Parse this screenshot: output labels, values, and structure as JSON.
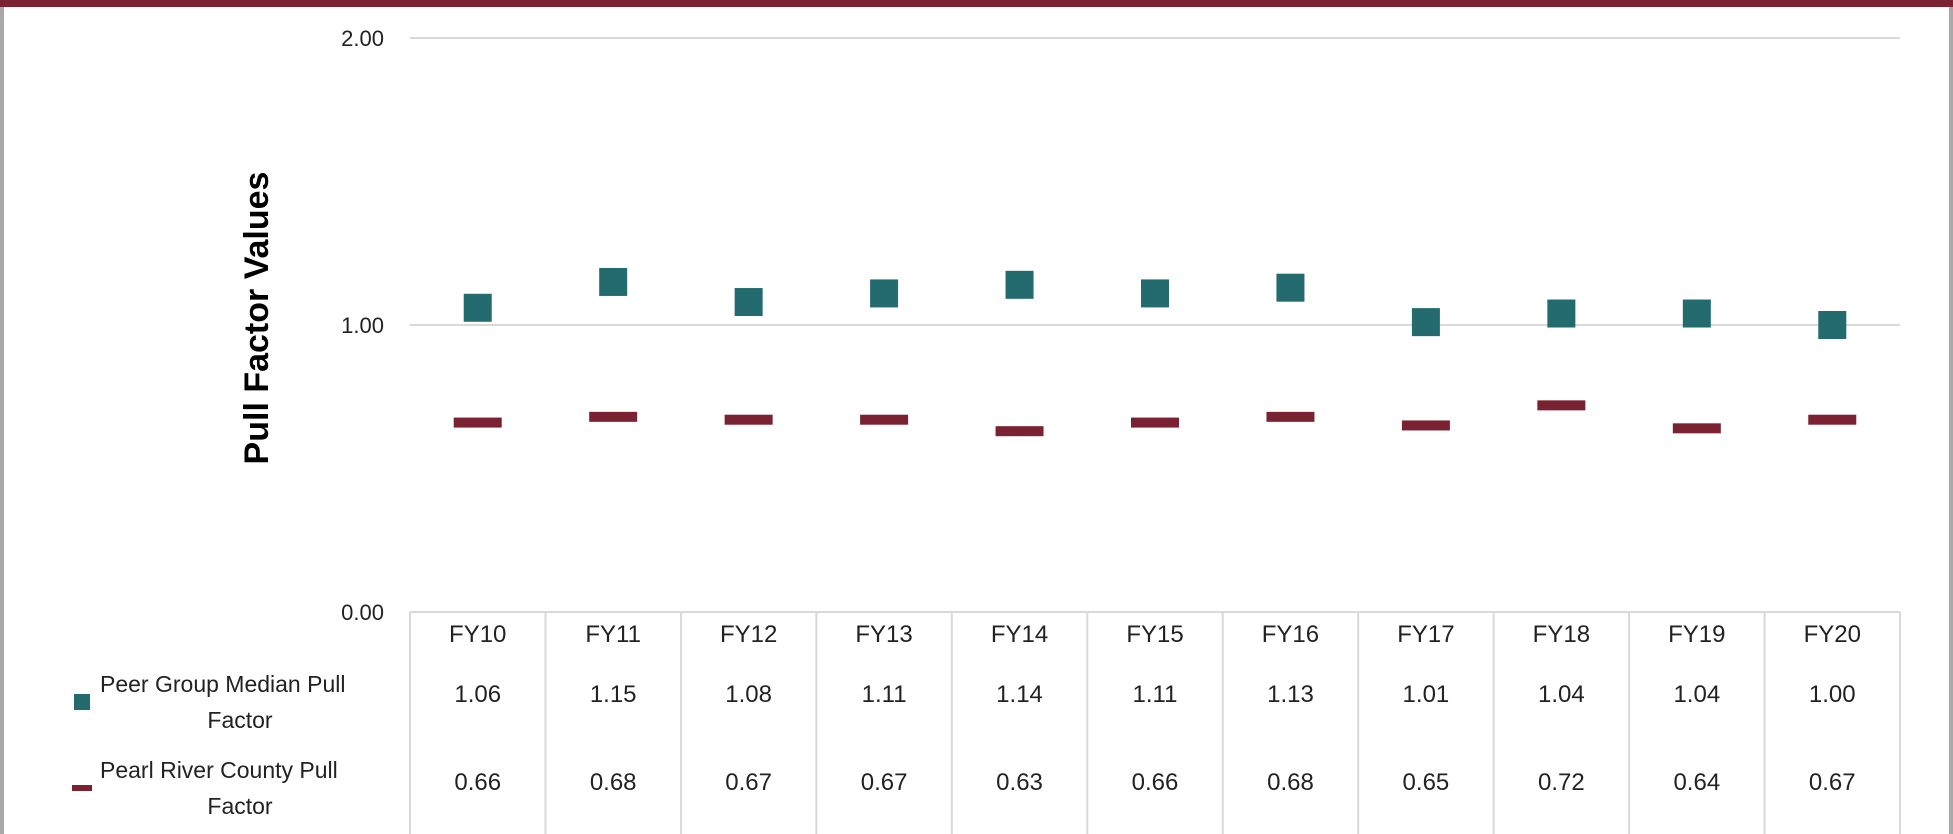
{
  "chart_data": {
    "type": "scatter",
    "title": "",
    "xlabel": "",
    "ylabel": "Pull Factor Values",
    "ylim": [
      0,
      2
    ],
    "yticks": [
      "0.00",
      "1.00",
      "2.00"
    ],
    "grid": true,
    "categories": [
      "FY10",
      "FY11",
      "FY12",
      "FY13",
      "FY14",
      "FY15",
      "FY16",
      "FY17",
      "FY18",
      "FY19",
      "FY20"
    ],
    "series": [
      {
        "name": "Peer Group Median Pull Factor",
        "marker": "square",
        "color": "#236b6e",
        "values": [
          1.06,
          1.15,
          1.08,
          1.11,
          1.14,
          1.11,
          1.13,
          1.01,
          1.04,
          1.04,
          1.0
        ],
        "labels": [
          "1.06",
          "1.15",
          "1.08",
          "1.11",
          "1.14",
          "1.11",
          "1.13",
          "1.01",
          "1.04",
          "1.04",
          "1.00"
        ]
      },
      {
        "name": "Pearl River County Pull Factor",
        "marker": "dash",
        "color": "#7b2232",
        "values": [
          0.66,
          0.68,
          0.67,
          0.67,
          0.63,
          0.66,
          0.68,
          0.65,
          0.72,
          0.64,
          0.67
        ],
        "labels": [
          "0.66",
          "0.68",
          "0.67",
          "0.67",
          "0.63",
          "0.66",
          "0.68",
          "0.65",
          "0.72",
          "0.64",
          "0.67"
        ]
      }
    ],
    "legend_position": "data-table-left",
    "data_table": true
  }
}
